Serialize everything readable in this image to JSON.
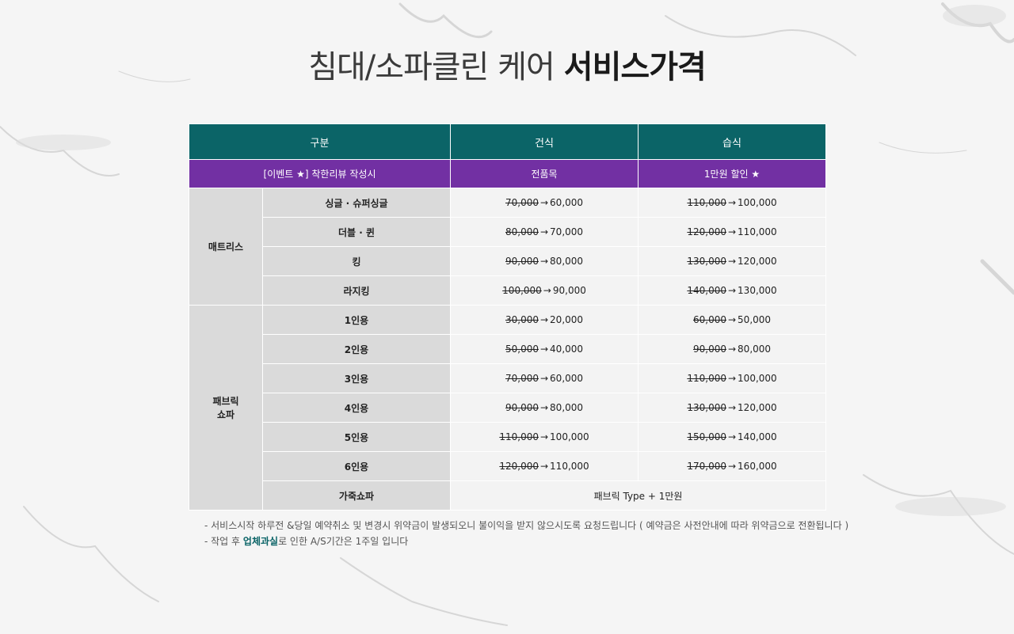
{
  "title": {
    "light": "침대/소파클린 케어",
    "bold": "서비스가격"
  },
  "header": {
    "col1": "구분",
    "col2": "건식",
    "col3": "습식"
  },
  "event": {
    "label": "[이벤트 ★] 착한리뷰 작성시",
    "dry": "전품목",
    "wet": "1만원 할인  ★"
  },
  "arrow": "→",
  "sections": [
    {
      "category": "매트리스",
      "rows": [
        {
          "name": "싱글 · 슈퍼싱글",
          "dry_old": "70,000",
          "dry_new": "60,000",
          "wet_old": "110,000",
          "wet_new": "100,000"
        },
        {
          "name": "더블 · 퀸",
          "dry_old": "80,000",
          "dry_new": "70,000",
          "wet_old": "120,000",
          "wet_new": "110,000"
        },
        {
          "name": "킹",
          "dry_old": "90,000",
          "dry_new": "80,000",
          "wet_old": "130,000",
          "wet_new": "120,000"
        },
        {
          "name": "라지킹",
          "dry_old": "100,000",
          "dry_new": "90,000",
          "wet_old": "140,000",
          "wet_new": "130,000"
        }
      ]
    },
    {
      "category_line1": "패브릭",
      "category_line2": "쇼파",
      "rows": [
        {
          "name": "1인용",
          "dry_old": "30,000",
          "dry_new": "20,000",
          "wet_old": "60,000",
          "wet_new": "50,000"
        },
        {
          "name": "2인용",
          "dry_old": "50,000",
          "dry_new": "40,000",
          "wet_old": "90,000",
          "wet_new": "80,000"
        },
        {
          "name": "3인용",
          "dry_old": "70,000",
          "dry_new": "60,000",
          "wet_old": "110,000",
          "wet_new": "100,000"
        },
        {
          "name": "4인용",
          "dry_old": "90,000",
          "dry_new": "80,000",
          "wet_old": "130,000",
          "wet_new": "120,000"
        },
        {
          "name": "5인용",
          "dry_old": "110,000",
          "dry_new": "100,000",
          "wet_old": "150,000",
          "wet_new": "140,000"
        },
        {
          "name": "6인용",
          "dry_old": "120,000",
          "dry_new": "110,000",
          "wet_old": "170,000",
          "wet_new": "160,000"
        },
        {
          "name": "가죽쇼파",
          "merged": "패브릭 Type + 1만원"
        }
      ]
    }
  ],
  "notes": {
    "line1": "- 서비스시작 하루전 &당일 예약취소 및 변경시 위약금이 발생되오니 불이익을 받지 않으시도록 요청드립니다 ( 예약금은 사전안내에 따라 위약금으로 전환됩니다 )",
    "line2_pre": "- 작업 후 ",
    "line2_hl": "업체과실",
    "line2_post": "로 인한 A/S기간은 1주일 입니다"
  },
  "colors": {
    "header": "#0b6467",
    "event": "#7230a3",
    "category": "#dadada",
    "cell": "#f3f3f3"
  }
}
